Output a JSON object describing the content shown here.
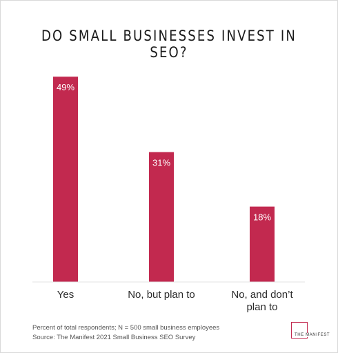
{
  "chart_data": {
    "type": "bar",
    "title": "DO SMALL BUSINESSES INVEST IN SEO?",
    "categories": [
      "Yes",
      "No, but plan to",
      "No, and don't plan to"
    ],
    "category_lines": [
      [
        "Yes"
      ],
      [
        "No, but plan to"
      ],
      [
        "No, and don’t",
        "plan to"
      ]
    ],
    "values": [
      49,
      31,
      18
    ],
    "value_labels": [
      "49%",
      "31%",
      "18%"
    ],
    "xlabel": "",
    "ylabel": "",
    "ylim": [
      0,
      52
    ],
    "grid": false,
    "legend": "none",
    "bar_color": "#c2294f"
  },
  "footer": {
    "note": "Percent of total respondents; N = 500 small business employees",
    "source": "Source: The Manifest 2021 Small Business SEO Survey"
  },
  "logo": {
    "text": "THE MANIFEST",
    "color": "#c2294f"
  }
}
